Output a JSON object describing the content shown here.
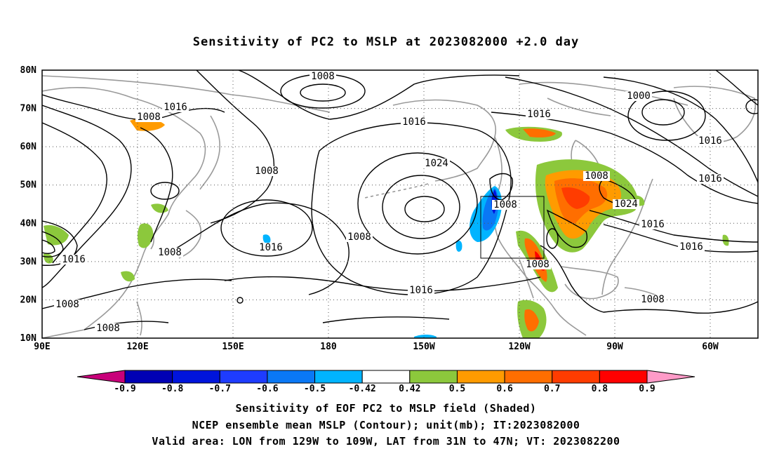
{
  "title": "Sensitivity of PC2 to MSLP at 2023082000 +2.0 day",
  "axes": {
    "lat_labels": [
      "80N",
      "70N",
      "60N",
      "50N",
      "40N",
      "30N",
      "20N",
      "10N"
    ],
    "lon_labels": [
      "90E",
      "120E",
      "150E",
      "180",
      "150W",
      "120W",
      "90W",
      "60W"
    ]
  },
  "contour_labels": [
    "1008",
    "1016",
    "1008",
    "1016",
    "1024",
    "1000",
    "1016",
    "1008",
    "1008",
    "1016",
    "1008",
    "1016",
    "1016",
    "1008",
    "1024",
    "1016",
    "1016",
    "1008",
    "1016",
    "1008",
    "1008",
    "1016",
    "1008",
    "1008"
  ],
  "colorbar": {
    "labels": [
      "-0.9",
      "-0.8",
      "-0.7",
      "-0.6",
      "-0.5",
      "-0.42",
      "0.42",
      "0.5",
      "0.6",
      "0.7",
      "0.8",
      "0.9"
    ],
    "colors": [
      "#c8007a",
      "#0000b4",
      "#0014dc",
      "#1e3cff",
      "#0a78f5",
      "#00b4ff",
      "#ffffff",
      "#8cc83c",
      "#ff9b00",
      "#ff6e00",
      "#ff3c00",
      "#ff0000",
      "#ff9bc8"
    ]
  },
  "captions": [
    "Sensitivity of EOF PC2 to MSLP field (Shaded)",
    "NCEP ensemble mean MSLP (Contour); unit(mb); IT:2023082000",
    "Valid area: LON from 129W to 109W, LAT from 31N to 47N; VT: 2023082200"
  ]
}
